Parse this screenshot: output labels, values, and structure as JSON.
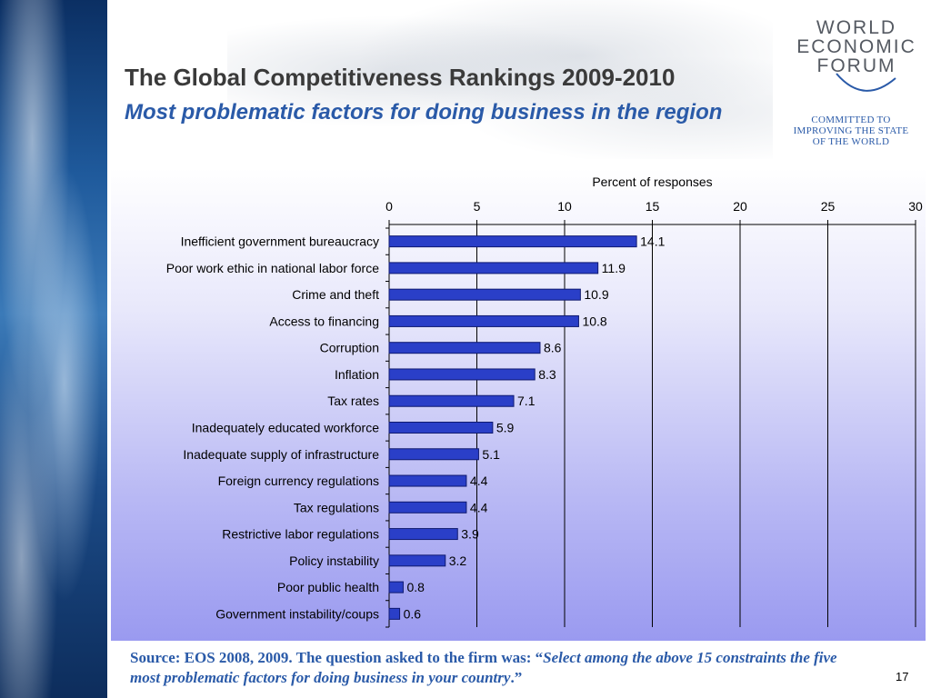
{
  "header": {
    "title": "The Global Competitiveness Rankings 2009-2010",
    "subtitle": "Most problematic factors for doing business in the region"
  },
  "logo": {
    "line1": "WORLD",
    "line2": "ECONOMIC",
    "line3": "FORUM",
    "tagline1": "COMMITTED TO",
    "tagline2": "IMPROVING THE STATE",
    "tagline3": "OF THE WORLD"
  },
  "footer": {
    "source_prefix": "Source: EOS 2008, 2009. The question asked to the firm was: “",
    "source_quote": "Select among the above 15 constraints the five most problematic factors for doing business in your country",
    "source_suffix": ".”",
    "page_number": "17"
  },
  "colors": {
    "bar": "#2a3fc8",
    "title": "#3a3a3a",
    "accent": "#2a5aa8"
  },
  "chart_data": {
    "type": "bar",
    "orientation": "horizontal",
    "xlabel": "Percent of responses",
    "xlim": [
      0,
      30
    ],
    "ticks": [
      0,
      5,
      10,
      15,
      20,
      25,
      30
    ],
    "grid": true,
    "categories": [
      "Inefficient government bureaucracy",
      "Poor work ethic in national labor force",
      "Crime and theft",
      "Access to financing",
      "Corruption",
      "Inflation",
      "Tax rates",
      "Inadequately educated workforce",
      "Inadequate supply of infrastructure",
      "Foreign currency regulations",
      "Tax regulations",
      "Restrictive labor regulations",
      "Policy instability",
      "Poor public health",
      "Government instability/coups"
    ],
    "values": [
      14.1,
      11.9,
      10.9,
      10.8,
      8.6,
      8.3,
      7.1,
      5.9,
      5.1,
      4.4,
      4.4,
      3.9,
      3.2,
      0.8,
      0.6
    ],
    "value_labels": [
      "14.1",
      "11.9",
      "10.9",
      "10.8",
      "8.6",
      "8.3",
      "7.1",
      "5.9",
      "5.1",
      "4.4",
      "4.4",
      "3.9",
      "3.2",
      "0.8",
      "0.6"
    ]
  }
}
